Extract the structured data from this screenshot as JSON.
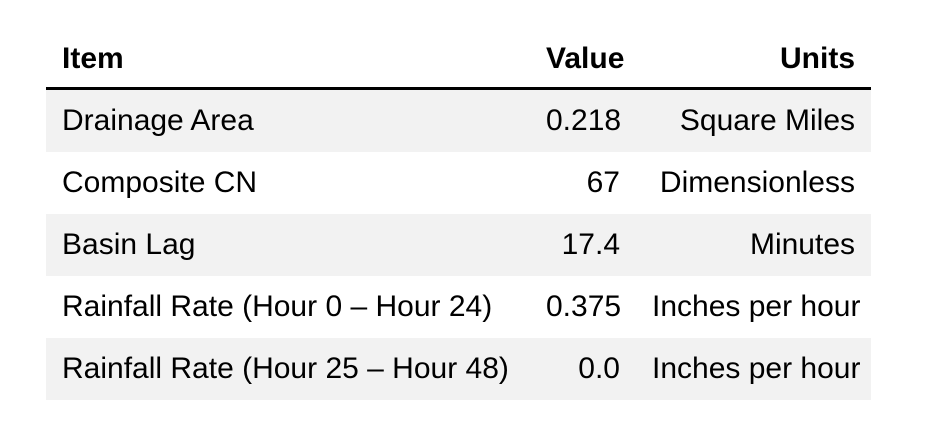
{
  "chart_data": {
    "type": "table",
    "title": "",
    "columns": [
      {
        "label": "Item",
        "align": "left"
      },
      {
        "label": "Value",
        "align": "right"
      },
      {
        "label": "Units",
        "align": "right"
      }
    ],
    "rows": [
      {
        "item": "Drainage Area",
        "value": "0.218",
        "units": "Square Miles"
      },
      {
        "item": "Composite CN",
        "value": "67",
        "units": "Dimensionless"
      },
      {
        "item": "Basin Lag",
        "value": "17.4",
        "units": "Minutes"
      },
      {
        "item": "Rainfall Rate (Hour 0 – Hour 24)",
        "value": "0.375",
        "units": "Inches per hour"
      },
      {
        "item": "Rainfall Rate (Hour 25 – Hour 48)",
        "value": "0.0",
        "units": "Inches per hour"
      }
    ],
    "layout": {
      "stripe_rows": "odd",
      "header_rule": "bottom"
    },
    "colors": {
      "stripe": "#f2f2f2",
      "header_border": "#000000",
      "text": "#000000",
      "background": "#ffffff"
    }
  }
}
